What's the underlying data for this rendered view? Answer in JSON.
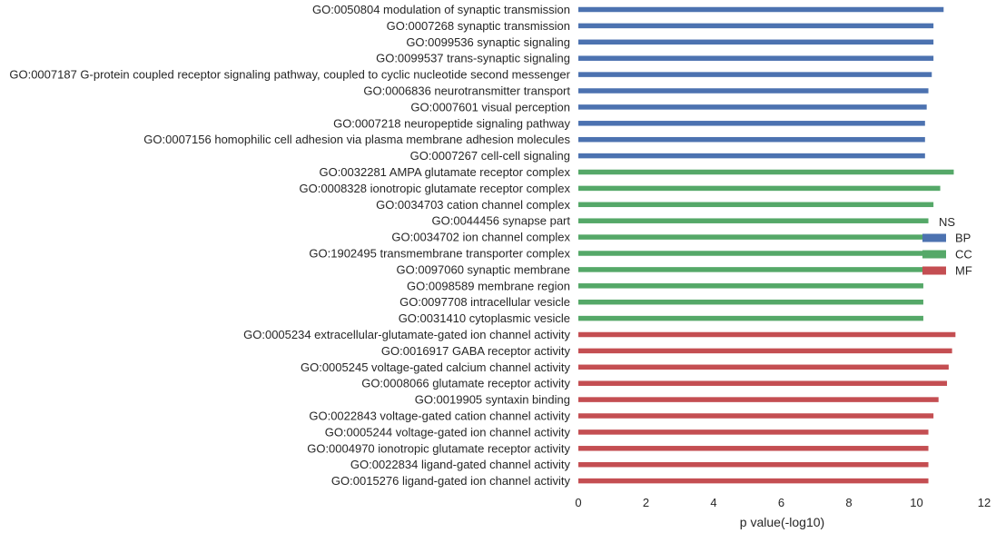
{
  "chart_data": {
    "type": "bar",
    "orientation": "horizontal",
    "xlabel": "p value(-log10)",
    "xlim": [
      0,
      12
    ],
    "xticks": [
      0,
      2,
      4,
      6,
      8,
      10,
      12
    ],
    "grid": false,
    "legend": {
      "title": "NS",
      "placement": "right",
      "entries": [
        {
          "name": "BP",
          "color": "#4c72b0"
        },
        {
          "name": "CC",
          "color": "#55a868"
        },
        {
          "name": "MF",
          "color": "#c44e52"
        }
      ]
    },
    "categories": [
      {
        "label": "GO:0050804 modulation of synaptic transmission",
        "value": 10.8,
        "group": "BP"
      },
      {
        "label": "GO:0007268 synaptic transmission",
        "value": 10.5,
        "group": "BP"
      },
      {
        "label": "GO:0099536 synaptic signaling",
        "value": 10.5,
        "group": "BP"
      },
      {
        "label": "GO:0099537 trans-synaptic signaling",
        "value": 10.5,
        "group": "BP"
      },
      {
        "label": "GO:0007187 G-protein coupled receptor signaling pathway, coupled to cyclic nucleotide second messenger",
        "value": 10.45,
        "group": "BP"
      },
      {
        "label": "GO:0006836 neurotransmitter transport",
        "value": 10.35,
        "group": "BP"
      },
      {
        "label": "GO:0007601 visual perception",
        "value": 10.3,
        "group": "BP"
      },
      {
        "label": "GO:0007218 neuropeptide signaling pathway",
        "value": 10.25,
        "group": "BP"
      },
      {
        "label": "GO:0007156 homophilic cell adhesion via plasma membrane adhesion molecules",
        "value": 10.25,
        "group": "BP"
      },
      {
        "label": "GO:0007267 cell-cell signaling",
        "value": 10.25,
        "group": "BP"
      },
      {
        "label": "GO:0032281 AMPA glutamate receptor complex",
        "value": 11.1,
        "group": "CC"
      },
      {
        "label": "GO:0008328 ionotropic glutamate receptor complex",
        "value": 10.7,
        "group": "CC"
      },
      {
        "label": "GO:0034703 cation channel complex",
        "value": 10.5,
        "group": "CC"
      },
      {
        "label": "GO:0044456 synapse part",
        "value": 10.35,
        "group": "CC"
      },
      {
        "label": "GO:0034702 ion channel complex",
        "value": 10.3,
        "group": "CC"
      },
      {
        "label": "GO:1902495 transmembrane transporter complex",
        "value": 10.25,
        "group": "CC"
      },
      {
        "label": "GO:0097060 synaptic membrane",
        "value": 10.2,
        "group": "CC"
      },
      {
        "label": "GO:0098589 membrane region",
        "value": 10.2,
        "group": "CC"
      },
      {
        "label": "GO:0097708 intracellular vesicle",
        "value": 10.2,
        "group": "CC"
      },
      {
        "label": "GO:0031410 cytoplasmic vesicle",
        "value": 10.2,
        "group": "CC"
      },
      {
        "label": "GO:0005234 extracellular-glutamate-gated ion channel activity",
        "value": 11.15,
        "group": "MF"
      },
      {
        "label": "GO:0016917 GABA receptor activity",
        "value": 11.05,
        "group": "MF"
      },
      {
        "label": "GO:0005245 voltage-gated calcium channel activity",
        "value": 10.95,
        "group": "MF"
      },
      {
        "label": "GO:0008066 glutamate receptor activity",
        "value": 10.9,
        "group": "MF"
      },
      {
        "label": "GO:0019905 syntaxin binding",
        "value": 10.65,
        "group": "MF"
      },
      {
        "label": "GO:0022843 voltage-gated cation channel activity",
        "value": 10.5,
        "group": "MF"
      },
      {
        "label": "GO:0005244 voltage-gated ion channel activity",
        "value": 10.35,
        "group": "MF"
      },
      {
        "label": "GO:0004970 ionotropic glutamate receptor activity",
        "value": 10.35,
        "group": "MF"
      },
      {
        "label": "GO:0022834 ligand-gated channel activity",
        "value": 10.35,
        "group": "MF"
      },
      {
        "label": "GO:0015276 ligand-gated ion channel activity",
        "value": 10.35,
        "group": "MF"
      }
    ]
  }
}
